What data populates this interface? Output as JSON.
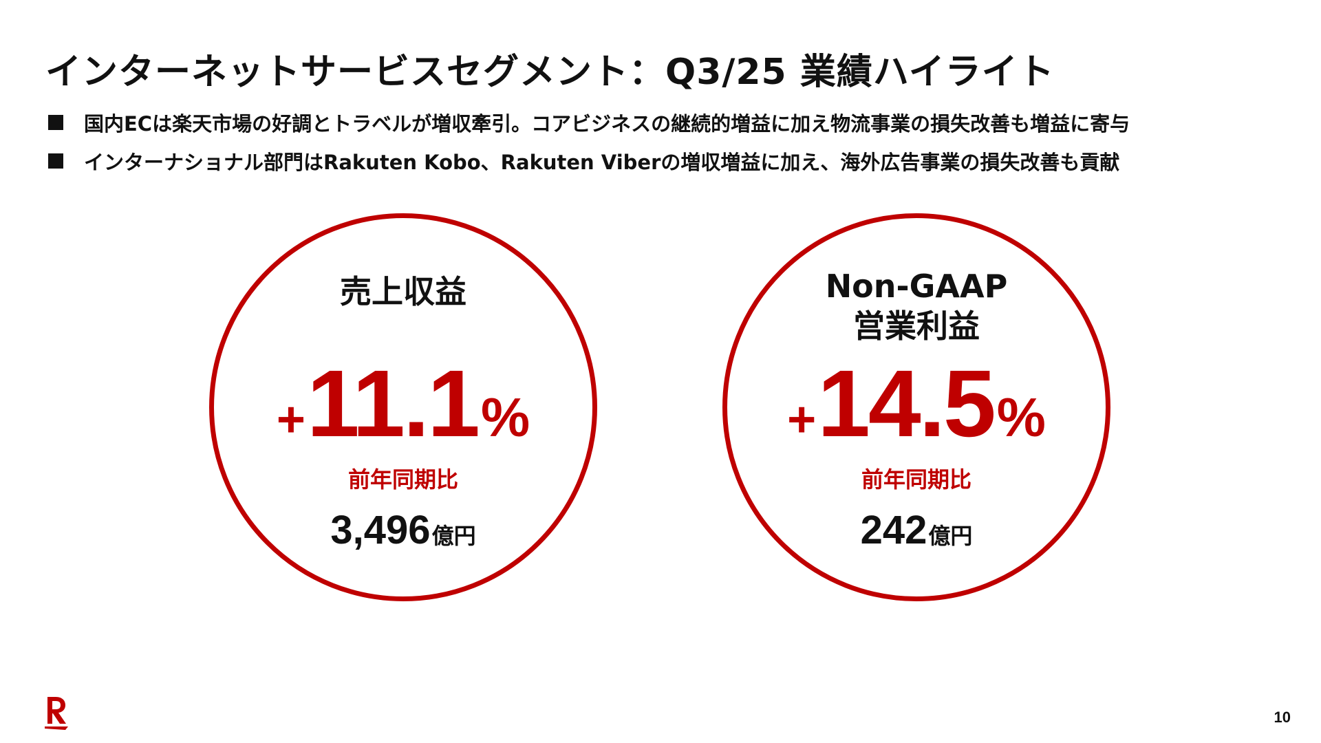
{
  "slide": {
    "title": "インターネットサービスセグメント：Q3/25 業績ハイライト",
    "bullets": [
      "国内ECは楽天市場の好調とトラベルが増収牽引。コアビジネスの継続的増益に加え物流事業の損失改善も増益に寄与",
      "インターナショナル部門はRakuten Kobo、Rakuten Viberの増収増益に加え、海外広告事業の損失改善も貢献"
    ],
    "page_number": "10"
  },
  "metrics": [
    {
      "label_lines": [
        "売上収益"
      ],
      "growth_sign": "+",
      "growth_value": "11.1",
      "growth_unit": "%",
      "comparison": "前年同期比",
      "amount": "3,496",
      "amount_unit": "億円"
    },
    {
      "label_lines": [
        "Non-GAAP",
        "営業利益"
      ],
      "growth_sign": "+",
      "growth_value": "14.5",
      "growth_unit": "%",
      "comparison": "前年同期比",
      "amount": "242",
      "amount_unit": "億円"
    }
  ],
  "colors": {
    "accent": "#bf0000",
    "text": "#111111",
    "background": "#ffffff"
  },
  "icons": {
    "logo": "rakuten-r-logo-icon",
    "bullet": "square-bullet-icon"
  }
}
